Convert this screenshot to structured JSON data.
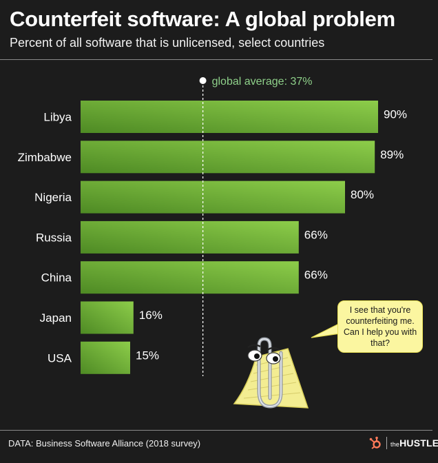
{
  "header": {
    "title": "Counterfeit software: A global problem",
    "subtitle": "Percent of all software that is unlicensed, select countries"
  },
  "chart_data": {
    "type": "bar",
    "orientation": "horizontal",
    "categories": [
      "Libya",
      "Zimbabwe",
      "Nigeria",
      "Russia",
      "China",
      "Japan",
      "USA"
    ],
    "values": [
      90,
      89,
      80,
      66,
      66,
      16,
      15
    ],
    "value_labels": [
      "90%",
      "89%",
      "80%",
      "66%",
      "66%",
      "16%",
      "15%"
    ],
    "title": "Counterfeit software: A global problem",
    "subtitle": "Percent of all software that is unlicensed, select countries",
    "xlim": [
      0,
      100
    ],
    "reference_line": {
      "value": 37,
      "label": "global average: 37%"
    },
    "bar_color": "#7fbf3f",
    "grid": false
  },
  "annotation": {
    "bubble_text": "I see that you're counterfeiting me. Can I help you with that?",
    "mascot_icon": "paperclip-assistant-icon"
  },
  "footer": {
    "source": "DATA: Business Software Alliance (2018 survey)",
    "brand_small": "the",
    "brand_name": "HUSTLE",
    "brand_icon": "hubspot-sprocket-icon"
  },
  "colors": {
    "background": "#1c1c1c",
    "bar_light": "#8dcd4a",
    "bar_dark": "#4e8a24",
    "refline_label": "#8fd18a",
    "bubble": "#fbf6a0",
    "brand_accent": "#ff7a59"
  }
}
